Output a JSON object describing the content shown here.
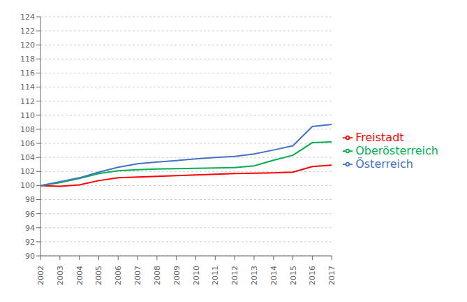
{
  "chart_data": {
    "type": "line",
    "x": [
      2002,
      2003,
      2004,
      2005,
      2006,
      2007,
      2008,
      2009,
      2010,
      2011,
      2012,
      2013,
      2014,
      2015,
      2016,
      2017
    ],
    "series": [
      {
        "name": "Freistadt",
        "color": "#ff0000",
        "values": [
          100.0,
          99.9,
          100.1,
          100.7,
          101.1,
          101.2,
          101.3,
          101.4,
          101.5,
          101.6,
          101.7,
          101.75,
          101.8,
          101.9,
          102.7,
          102.9
        ]
      },
      {
        "name": "Oberösterreich",
        "color": "#00b050",
        "values": [
          100.0,
          100.4,
          101.0,
          101.7,
          102.1,
          102.25,
          102.35,
          102.4,
          102.45,
          102.5,
          102.55,
          102.8,
          103.6,
          104.3,
          106.1,
          106.2
        ]
      },
      {
        "name": "Österreich",
        "color": "#4472c4",
        "values": [
          100.0,
          100.55,
          101.1,
          101.9,
          102.6,
          103.1,
          103.35,
          103.55,
          103.8,
          104.0,
          104.15,
          104.5,
          105.05,
          105.65,
          108.4,
          108.7
        ]
      }
    ],
    "xlim": [
      2002,
      2017
    ],
    "xticks": [
      2002,
      2003,
      2004,
      2005,
      2006,
      2007,
      2008,
      2009,
      2010,
      2011,
      2012,
      2013,
      2014,
      2015,
      2016,
      2017
    ],
    "ylim": [
      90,
      124
    ],
    "yticks": [
      90,
      92,
      94,
      96,
      98,
      100,
      102,
      104,
      106,
      108,
      110,
      112,
      114,
      116,
      118,
      120,
      122,
      124
    ],
    "grid": true,
    "legend": "right"
  }
}
